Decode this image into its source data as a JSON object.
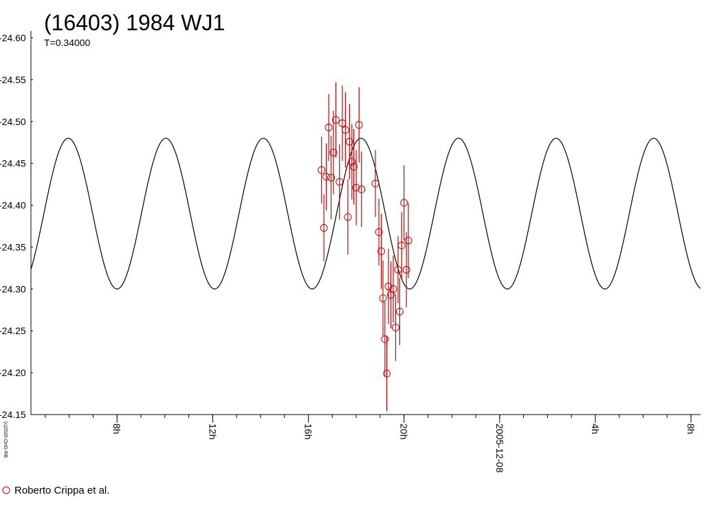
{
  "chart_data": {
    "type": "scatter",
    "title": "(16403) 1984 WJ1",
    "subtitle": "T=0.34000",
    "copyright": "(c)2020 OrIG-RB",
    "y_axis": {
      "range": [
        -24.15,
        -24.6
      ],
      "inverted": true,
      "ticks": [
        -24.6,
        -24.55,
        -24.5,
        -24.45,
        -24.4,
        -24.35,
        -24.3,
        -24.25,
        -24.2,
        -24.15
      ],
      "tick_labels": [
        "-24.60",
        "-24.55",
        "-24.50",
        "-24.45",
        "-24.40",
        "-24.35",
        "-24.30",
        "-24.25",
        "-24.20",
        "-24.15"
      ]
    },
    "x_axis": {
      "unit": "hours",
      "range": [
        4.4,
        32.4
      ],
      "minor_tick_step": 1,
      "labeled_ticks": [
        {
          "x": 8,
          "label": "8h"
        },
        {
          "x": 12,
          "label": "12h"
        },
        {
          "x": 16,
          "label": "16h"
        },
        {
          "x": 20,
          "label": "20h"
        },
        {
          "x": 24,
          "label": "2005-12-08"
        },
        {
          "x": 28,
          "label": "4h"
        },
        {
          "x": 32,
          "label": "8h"
        }
      ]
    },
    "model_curve": {
      "period_hours": 4.08,
      "mean": -24.39,
      "amplitude": 0.09,
      "peak_time": 18.2,
      "color": "#000000"
    },
    "series": [
      {
        "name": "Roberto Crippa et al.",
        "color": "#cc0000",
        "marker": "open-circle",
        "points": [
          {
            "t": 16.55,
            "mag": -24.442,
            "err": 0.04
          },
          {
            "t": 16.65,
            "mag": -24.373,
            "err": 0.04
          },
          {
            "t": 16.75,
            "mag": -24.434,
            "err": 0.04
          },
          {
            "t": 16.85,
            "mag": -24.493,
            "err": 0.04
          },
          {
            "t": 16.95,
            "mag": -24.433,
            "err": 0.05
          },
          {
            "t": 17.05,
            "mag": -24.463,
            "err": 0.05
          },
          {
            "t": 17.15,
            "mag": -24.502,
            "err": 0.045
          },
          {
            "t": 17.3,
            "mag": -24.428,
            "err": 0.045
          },
          {
            "t": 17.42,
            "mag": -24.498,
            "err": 0.045
          },
          {
            "t": 17.55,
            "mag": -24.49,
            "err": 0.045
          },
          {
            "t": 17.65,
            "mag": -24.386,
            "err": 0.045
          },
          {
            "t": 17.72,
            "mag": -24.476,
            "err": 0.045
          },
          {
            "t": 17.82,
            "mag": -24.452,
            "err": 0.045
          },
          {
            "t": 17.9,
            "mag": -24.446,
            "err": 0.045
          },
          {
            "t": 18.0,
            "mag": -24.421,
            "err": 0.045
          },
          {
            "t": 18.12,
            "mag": -24.496,
            "err": 0.045
          },
          {
            "t": 18.22,
            "mag": -24.419,
            "err": 0.045
          },
          {
            "t": 18.8,
            "mag": -24.426,
            "err": 0.04
          },
          {
            "t": 18.95,
            "mag": -24.368,
            "err": 0.04
          },
          {
            "t": 19.05,
            "mag": -24.345,
            "err": 0.045
          },
          {
            "t": 19.12,
            "mag": -24.289,
            "err": 0.045
          },
          {
            "t": 19.2,
            "mag": -24.24,
            "err": 0.045
          },
          {
            "t": 19.28,
            "mag": -24.199,
            "err": 0.045
          },
          {
            "t": 19.35,
            "mag": -24.303,
            "err": 0.045
          },
          {
            "t": 19.45,
            "mag": -24.293,
            "err": 0.04
          },
          {
            "t": 19.55,
            "mag": -24.3,
            "err": 0.04
          },
          {
            "t": 19.65,
            "mag": -24.254,
            "err": 0.04
          },
          {
            "t": 19.75,
            "mag": -24.323,
            "err": 0.04
          },
          {
            "t": 19.82,
            "mag": -24.273,
            "err": 0.04
          },
          {
            "t": 19.9,
            "mag": -24.352,
            "err": 0.04
          },
          {
            "t": 20.0,
            "mag": -24.403,
            "err": 0.045
          },
          {
            "t": 20.1,
            "mag": -24.323,
            "err": 0.045
          },
          {
            "t": 20.18,
            "mag": -24.358,
            "err": 0.045
          }
        ]
      }
    ],
    "legend": {
      "placement": "bottom-left",
      "label": "Roberto Crippa et al."
    }
  }
}
